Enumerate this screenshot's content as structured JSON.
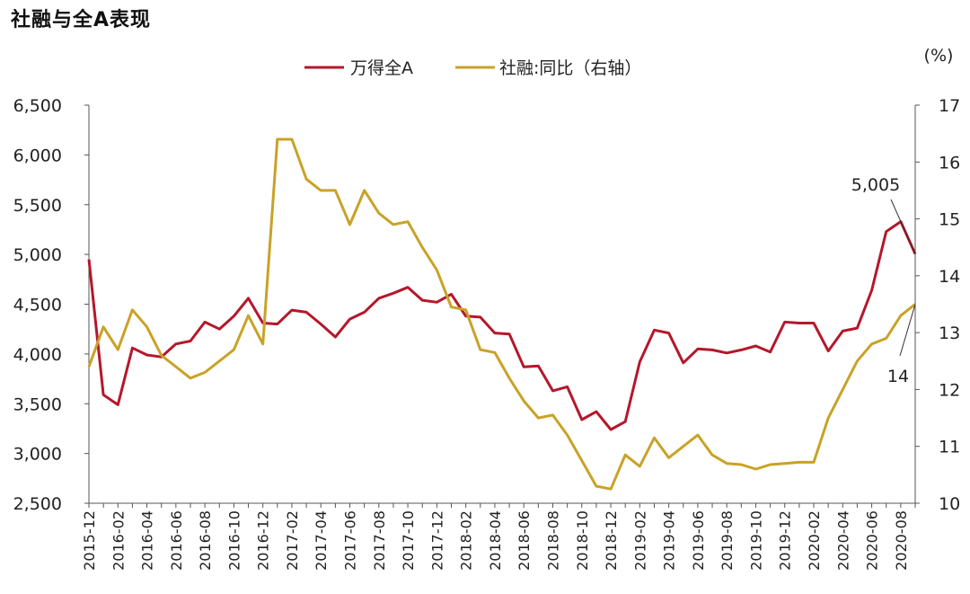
{
  "title": "社融与全A表现",
  "chart_data": {
    "type": "line",
    "title": "社融与全A表现",
    "unit_label": "(%)",
    "categories": [
      "2015-12",
      "2016-01",
      "2016-02",
      "2016-03",
      "2016-04",
      "2016-05",
      "2016-06",
      "2016-07",
      "2016-08",
      "2016-09",
      "2016-10",
      "2016-11",
      "2016-12",
      "2017-01",
      "2017-02",
      "2017-03",
      "2017-04",
      "2017-05",
      "2017-06",
      "2017-07",
      "2017-08",
      "2017-09",
      "2017-10",
      "2017-11",
      "2017-12",
      "2018-01",
      "2018-02",
      "2018-03",
      "2018-04",
      "2018-05",
      "2018-06",
      "2018-07",
      "2018-08",
      "2018-09",
      "2018-10",
      "2018-11",
      "2018-12",
      "2019-01",
      "2019-02",
      "2019-03",
      "2019-04",
      "2019-05",
      "2019-06",
      "2019-07",
      "2019-08",
      "2019-09",
      "2019-10",
      "2019-11",
      "2019-12",
      "2020-01",
      "2020-02",
      "2020-03",
      "2020-04",
      "2020-05",
      "2020-06",
      "2020-07",
      "2020-08",
      "2020-09"
    ],
    "x_tick_labels": [
      "2015-12",
      "2016-02",
      "2016-04",
      "2016-06",
      "2016-08",
      "2016-10",
      "2016-12",
      "2017-02",
      "2017-04",
      "2017-06",
      "2017-08",
      "2017-10",
      "2017-12",
      "2018-02",
      "2018-04",
      "2018-06",
      "2018-08",
      "2018-10",
      "2018-12",
      "2019-02",
      "2019-04",
      "2019-06",
      "2019-08",
      "2019-10",
      "2019-12",
      "2020-02",
      "2020-04",
      "2020-06",
      "2020-08"
    ],
    "left_axis": {
      "ylim": [
        2500,
        6500
      ],
      "ticks": [
        "2,500",
        "3,000",
        "3,500",
        "4,000",
        "4,500",
        "5,000",
        "5,500",
        "6,000",
        "6,500"
      ]
    },
    "right_axis": {
      "ylim": [
        10,
        17
      ],
      "ticks": [
        "10",
        "11",
        "12",
        "13",
        "14",
        "15",
        "16",
        "17"
      ]
    },
    "series": [
      {
        "name": "万得全A",
        "axis": "left",
        "color": "#B5172B",
        "values": [
          4950,
          3590,
          3490,
          4060,
          3990,
          3970,
          4100,
          4130,
          4320,
          4250,
          4380,
          4560,
          4310,
          4300,
          4440,
          4420,
          4300,
          4170,
          4350,
          4420,
          4560,
          4610,
          4670,
          4540,
          4520,
          4600,
          4380,
          4370,
          4210,
          4200,
          3870,
          3880,
          3630,
          3670,
          3340,
          3420,
          3240,
          3320,
          3920,
          4240,
          4210,
          3910,
          4050,
          4040,
          4010,
          4040,
          4080,
          4020,
          4320,
          4310,
          4310,
          4030,
          4230,
          4260,
          4640,
          5230,
          5330,
          5005
        ]
      },
      {
        "name": "社融:同比（右轴）",
        "axis": "right",
        "color": "#C9A227",
        "values": [
          12.4,
          13.1,
          12.7,
          13.4,
          13.1,
          12.6,
          12.4,
          12.2,
          12.3,
          12.5,
          12.7,
          13.3,
          12.8,
          16.4,
          16.4,
          15.7,
          15.5,
          15.5,
          14.9,
          15.5,
          15.1,
          14.9,
          14.95,
          14.5,
          14.1,
          13.45,
          13.4,
          12.7,
          12.65,
          12.2,
          11.8,
          11.5,
          11.55,
          11.2,
          10.75,
          10.3,
          10.25,
          10.85,
          10.65,
          11.15,
          10.8,
          11.0,
          11.2,
          10.85,
          10.7,
          10.68,
          10.6,
          10.68,
          10.7,
          10.72,
          10.72,
          11.5,
          12.0,
          12.5,
          12.8,
          12.9,
          13.3,
          13.5
        ]
      }
    ],
    "annotations": [
      {
        "series": "万得全A",
        "label": "5,005"
      },
      {
        "series": "社融:同比（右轴）",
        "label": "14"
      }
    ],
    "legend": "top-center"
  }
}
